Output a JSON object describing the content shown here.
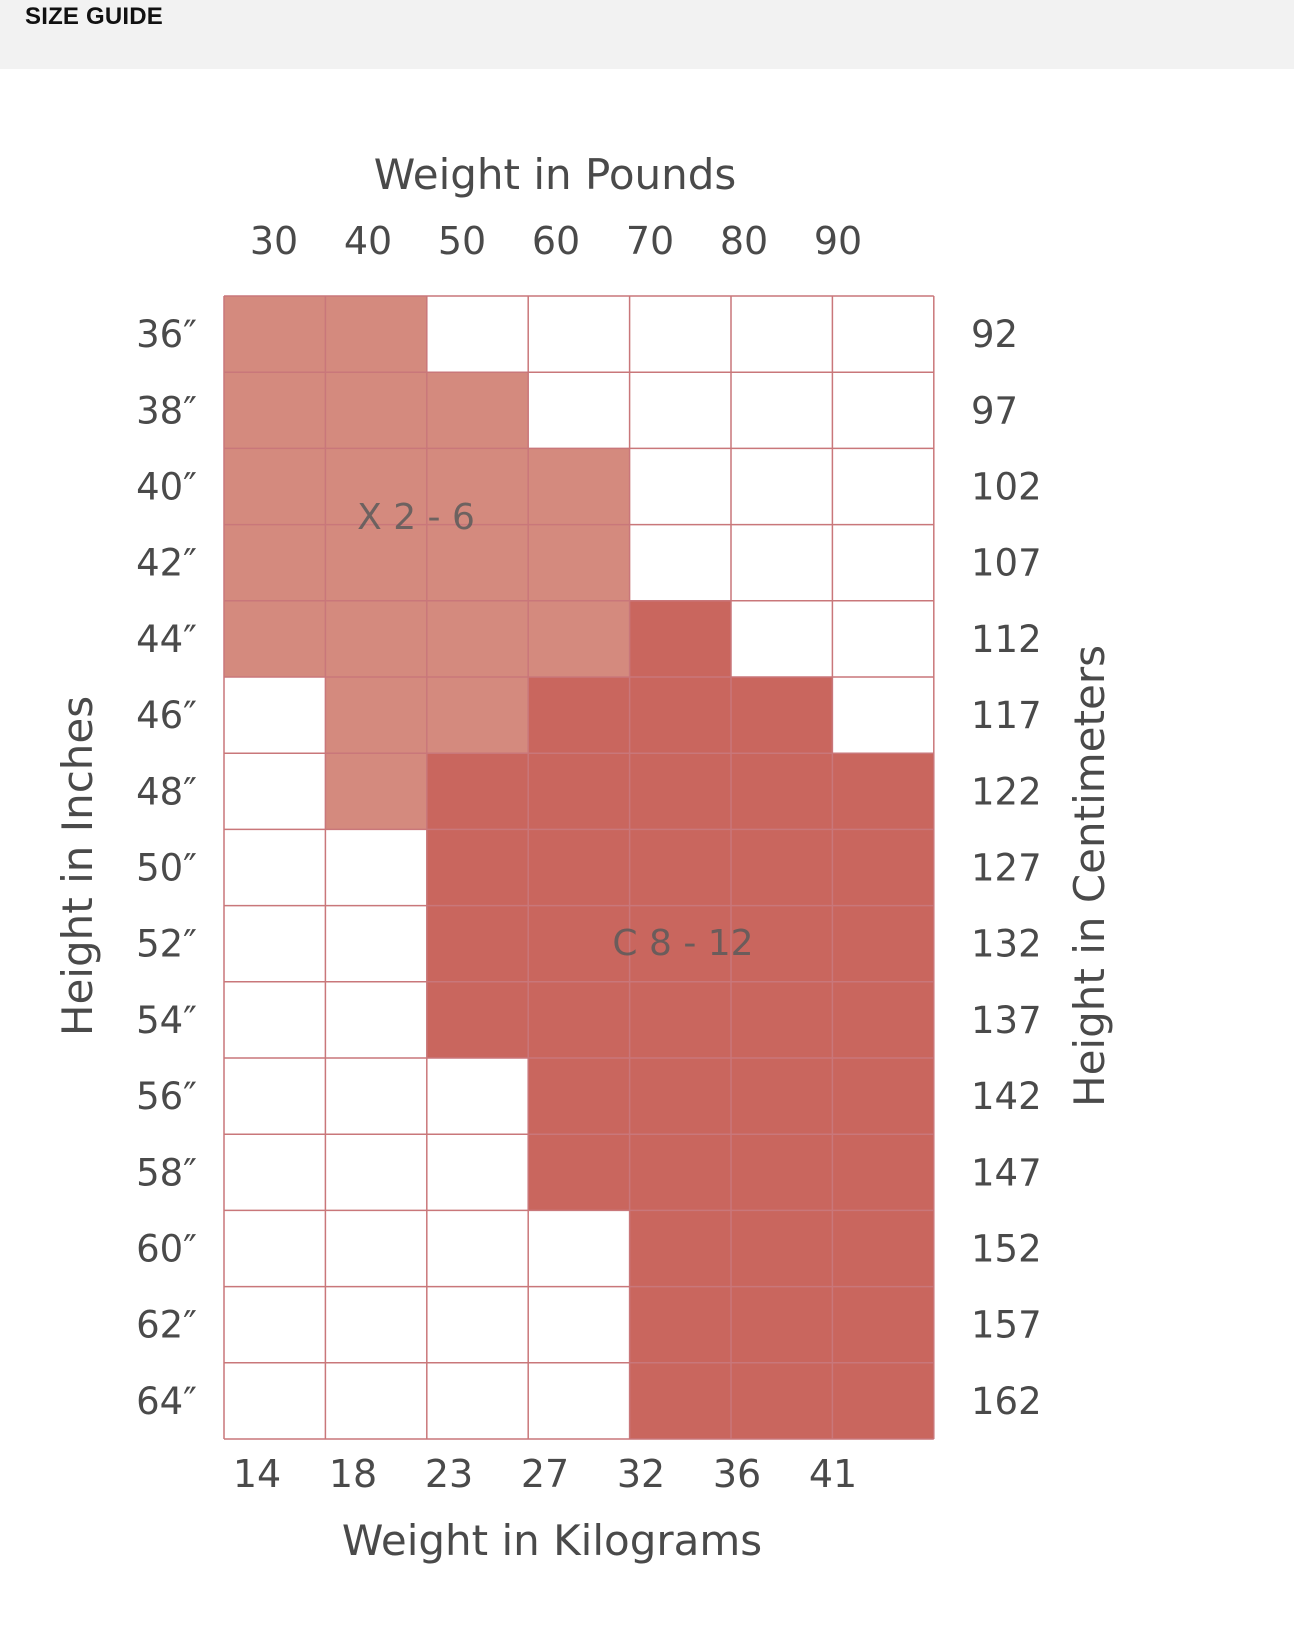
{
  "header": {
    "title": "SIZE GUIDE"
  },
  "chart_data": {
    "type": "heatmap",
    "top_axis": {
      "label": "Weight in Pounds",
      "ticks": [
        "30",
        "40",
        "50",
        "60",
        "70",
        "80",
        "90"
      ]
    },
    "bottom_axis": {
      "label": "Weight in Kilograms",
      "ticks": [
        "14",
        "18",
        "23",
        "27",
        "32",
        "36",
        "41"
      ]
    },
    "left_axis": {
      "label": "Height in Inches",
      "ticks": [
        "36″",
        "38″",
        "40″",
        "42″",
        "44″",
        "46″",
        "48″",
        "50″",
        "52″",
        "54″",
        "56″",
        "58″",
        "60″",
        "62″",
        "64″"
      ]
    },
    "right_axis": {
      "label": "Height in Centimeters",
      "ticks": [
        "92",
        "97",
        "102",
        "107",
        "112",
        "117",
        "122",
        "127",
        "132",
        "137",
        "142",
        "147",
        "152",
        "157",
        "162"
      ]
    },
    "regions": [
      {
        "label": "X 2 - 6",
        "color": "#d48a7e",
        "cells": [
          [
            0,
            0
          ],
          [
            0,
            1
          ],
          [
            1,
            0
          ],
          [
            1,
            1
          ],
          [
            1,
            2
          ],
          [
            2,
            0
          ],
          [
            2,
            1
          ],
          [
            2,
            2
          ],
          [
            2,
            3
          ],
          [
            3,
            0
          ],
          [
            3,
            1
          ],
          [
            3,
            2
          ],
          [
            3,
            3
          ],
          [
            4,
            0
          ],
          [
            4,
            1
          ],
          [
            4,
            2
          ],
          [
            4,
            3
          ],
          [
            5,
            1
          ],
          [
            5,
            2
          ],
          [
            6,
            1
          ]
        ]
      },
      {
        "label": "C 8 - 12",
        "color": "#c9665e",
        "cells": [
          [
            4,
            4
          ],
          [
            5,
            3
          ],
          [
            5,
            4
          ],
          [
            5,
            5
          ],
          [
            6,
            2
          ],
          [
            6,
            3
          ],
          [
            6,
            4
          ],
          [
            6,
            5
          ],
          [
            6,
            6
          ],
          [
            7,
            2
          ],
          [
            7,
            3
          ],
          [
            7,
            4
          ],
          [
            7,
            5
          ],
          [
            7,
            6
          ],
          [
            8,
            2
          ],
          [
            8,
            3
          ],
          [
            8,
            4
          ],
          [
            8,
            5
          ],
          [
            8,
            6
          ],
          [
            9,
            2
          ],
          [
            9,
            3
          ],
          [
            9,
            4
          ],
          [
            9,
            5
          ],
          [
            9,
            6
          ],
          [
            10,
            3
          ],
          [
            10,
            4
          ],
          [
            10,
            5
          ],
          [
            10,
            6
          ],
          [
            11,
            3
          ],
          [
            11,
            4
          ],
          [
            11,
            5
          ],
          [
            11,
            6
          ],
          [
            12,
            4
          ],
          [
            12,
            5
          ],
          [
            12,
            6
          ],
          [
            13,
            4
          ],
          [
            13,
            5
          ],
          [
            13,
            6
          ],
          [
            14,
            4
          ],
          [
            14,
            5
          ],
          [
            14,
            6
          ]
        ]
      }
    ],
    "grid_color": "#c9777a",
    "text_color": "#4a4a4a"
  }
}
